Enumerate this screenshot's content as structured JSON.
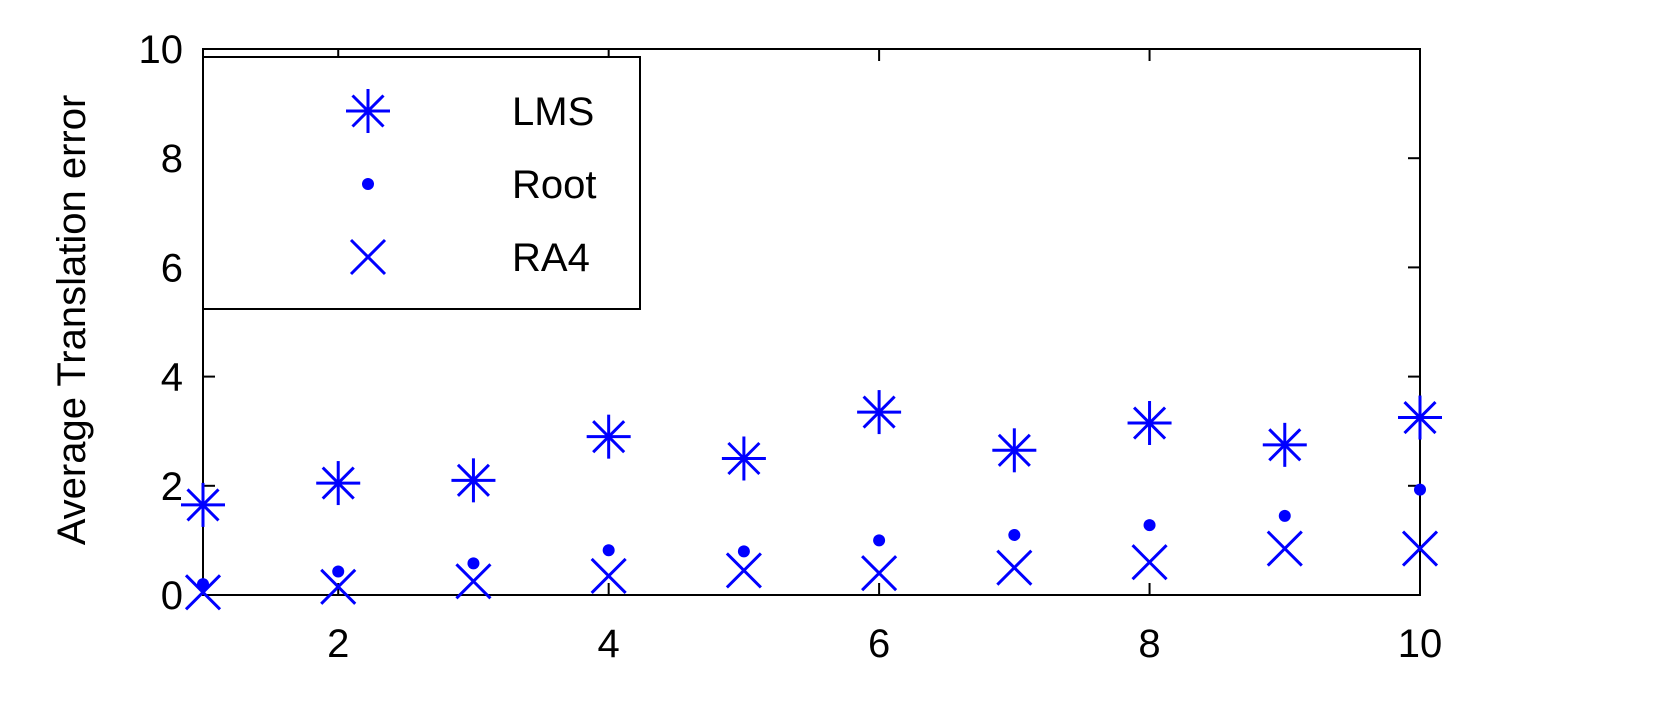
{
  "chart_data": {
    "type": "scatter",
    "xlabel": "",
    "ylabel": "Average Translation error",
    "xlim": [
      1,
      10
    ],
    "ylim": [
      0,
      10
    ],
    "xticks": [
      2,
      4,
      6,
      8,
      10
    ],
    "yticks": [
      0,
      2,
      4,
      6,
      8,
      10
    ],
    "grid": false,
    "legend_position": "top-left",
    "marker_color": "#0000ff",
    "series": [
      {
        "name": "LMS",
        "marker": "asterisk",
        "x": [
          1,
          2,
          3,
          4,
          5,
          6,
          7,
          8,
          9,
          10
        ],
        "y": [
          1.65,
          2.05,
          2.1,
          2.9,
          2.5,
          3.35,
          2.65,
          3.15,
          2.75,
          3.25
        ]
      },
      {
        "name": "Root",
        "marker": "dot",
        "x": [
          1,
          2,
          3,
          4,
          5,
          6,
          7,
          8,
          9,
          10
        ],
        "y": [
          0.2,
          0.43,
          0.58,
          0.82,
          0.8,
          1.0,
          1.1,
          1.28,
          1.45,
          1.93
        ]
      },
      {
        "name": "RA4",
        "marker": "x",
        "x": [
          1,
          2,
          3,
          4,
          5,
          6,
          7,
          8,
          9,
          10
        ],
        "y": [
          0.05,
          0.15,
          0.25,
          0.35,
          0.45,
          0.4,
          0.5,
          0.6,
          0.85,
          0.85
        ]
      }
    ]
  }
}
